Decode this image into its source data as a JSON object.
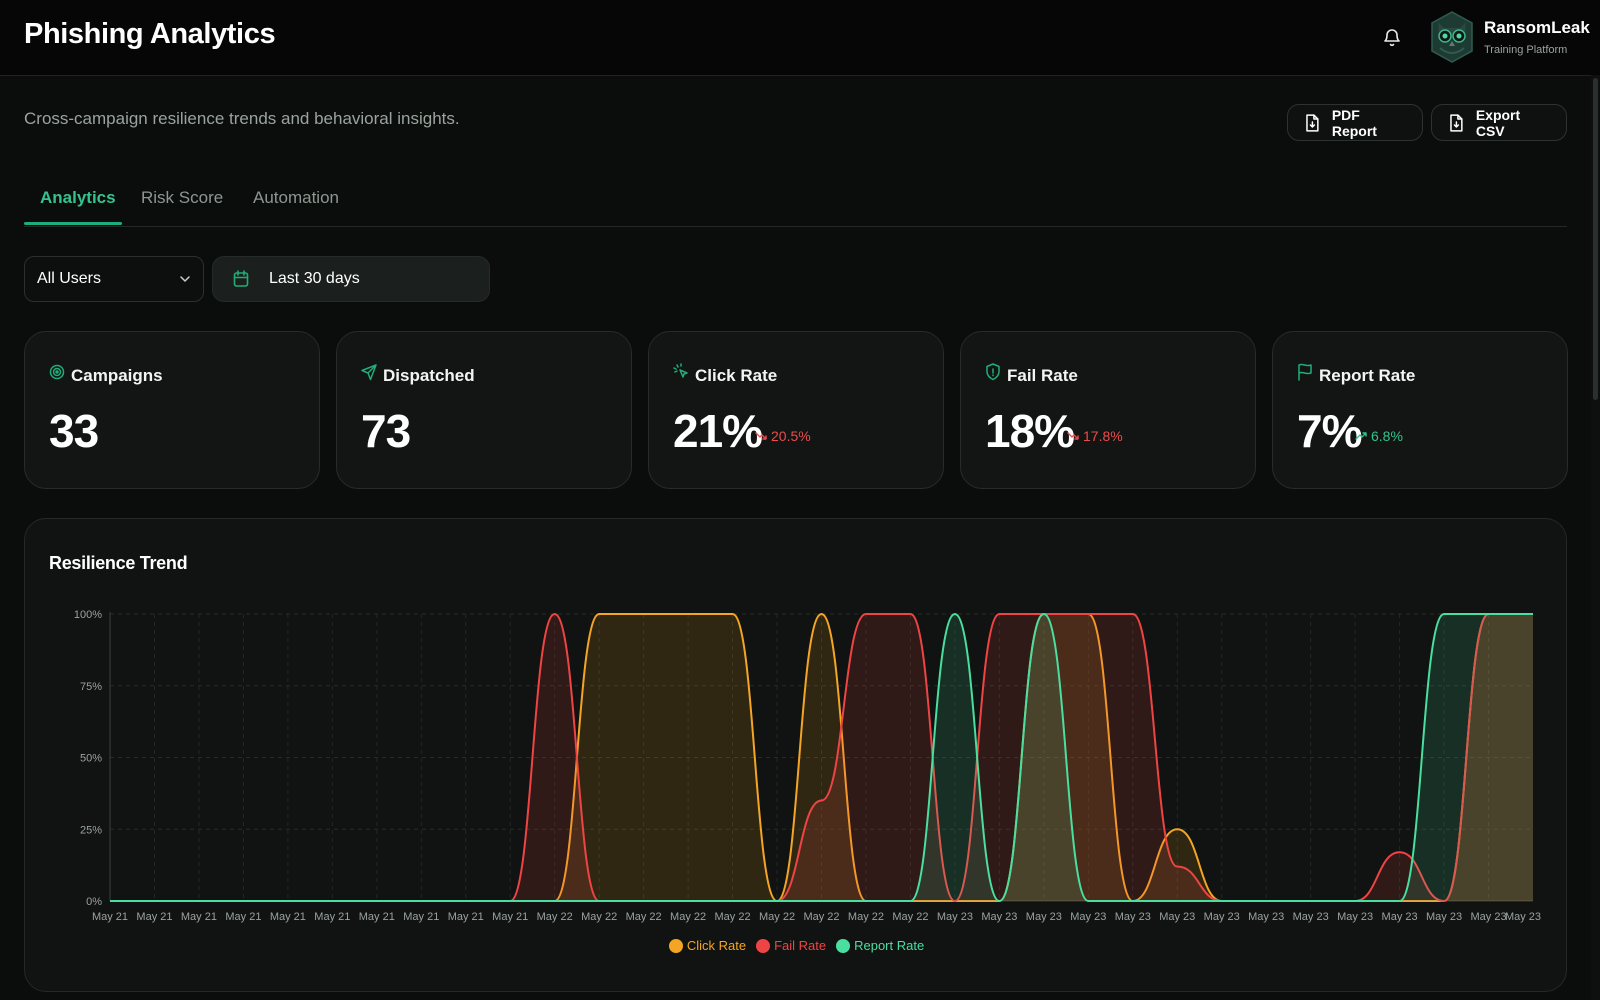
{
  "header": {
    "title": "Phishing Analytics",
    "brand_name": "RansomLeak",
    "brand_sub": "Training Platform"
  },
  "page": {
    "subtitle": "Cross-campaign resilience trends and behavioral insights."
  },
  "actions": {
    "pdf_label": "PDF Report",
    "csv_label": "Export CSV"
  },
  "tabs": [
    {
      "label": "Analytics",
      "active": true
    },
    {
      "label": "Risk Score",
      "active": false
    },
    {
      "label": "Automation",
      "active": false
    }
  ],
  "filters": {
    "audience": "All Users",
    "range": "Last 30 days"
  },
  "stats": [
    {
      "label": "Campaigns",
      "value": "33",
      "icon": "target-icon"
    },
    {
      "label": "Dispatched",
      "value": "73",
      "icon": "send-icon"
    },
    {
      "label": "Click Rate",
      "value": "21%",
      "icon": "click-icon",
      "trend": "20.5%",
      "direction": "down"
    },
    {
      "label": "Fail Rate",
      "value": "18%",
      "icon": "shield-icon",
      "trend": "17.8%",
      "direction": "down"
    },
    {
      "label": "Report Rate",
      "value": "7%",
      "icon": "flag-icon",
      "trend": "6.8%",
      "direction": "up"
    }
  ],
  "colors": {
    "accent": "#1fae7a",
    "click": "#f5a524",
    "fail": "#ef4444",
    "report": "#4ade9f",
    "down": "#ef4b4b",
    "up": "#34c38f"
  },
  "chart_data": {
    "type": "area",
    "title": "Resilience Trend",
    "x": [
      "May 21",
      "May 21",
      "May 21",
      "May 21",
      "May 21",
      "May 21",
      "May 21",
      "May 21",
      "May 21",
      "May 21",
      "May 22",
      "May 22",
      "May 22",
      "May 22",
      "May 22",
      "May 22",
      "May 22",
      "May 22",
      "May 22",
      "May 22",
      "May 23",
      "May 23",
      "May 23",
      "May 23",
      "May 23",
      "May 23",
      "May 23",
      "May 23",
      "May 23",
      "May 23",
      "May 23",
      "May 23",
      "May 23"
    ],
    "x_ticks": [
      "May 21",
      "May 21",
      "May 21",
      "May 21",
      "May 21",
      "May 21",
      "May 21",
      "May 21",
      "May 21",
      "May 21",
      "May 22",
      "May 22",
      "May 22",
      "May 22",
      "May 22",
      "May 22",
      "May 22",
      "May 22",
      "May 22",
      "May 23",
      "May 23",
      "May 23",
      "May 23",
      "May 23",
      "May 23",
      "May 23",
      "May 23",
      "May 23",
      "May 23",
      "May 23",
      "May 23",
      "May 23"
    ],
    "x_last_tick": "May 23",
    "y_ticks": [
      "0%",
      "25%",
      "50%",
      "75%",
      "100%"
    ],
    "ylim": [
      0,
      100
    ],
    "series": [
      {
        "name": "Click Rate",
        "color": "#f5a524",
        "values": [
          0,
          0,
          0,
          0,
          0,
          0,
          0,
          0,
          0,
          0,
          0,
          100,
          100,
          100,
          100,
          0,
          100,
          0,
          0,
          0,
          0,
          100,
          100,
          0,
          25,
          0,
          0,
          0,
          0,
          0,
          0,
          100,
          100
        ]
      },
      {
        "name": "Fail Rate",
        "color": "#ef4444",
        "values": [
          0,
          0,
          0,
          0,
          0,
          0,
          0,
          0,
          0,
          0,
          100,
          0,
          0,
          0,
          0,
          0,
          35,
          100,
          100,
          0,
          100,
          100,
          100,
          100,
          12,
          0,
          0,
          0,
          0,
          17,
          0,
          100,
          100
        ]
      },
      {
        "name": "Report Rate",
        "color": "#4ade9f",
        "values": [
          0,
          0,
          0,
          0,
          0,
          0,
          0,
          0,
          0,
          0,
          0,
          0,
          0,
          0,
          0,
          0,
          0,
          0,
          0,
          100,
          0,
          100,
          0,
          0,
          0,
          0,
          0,
          0,
          0,
          0,
          100,
          100,
          100
        ]
      }
    ],
    "legend_position": "bottom-center",
    "grid": true
  }
}
